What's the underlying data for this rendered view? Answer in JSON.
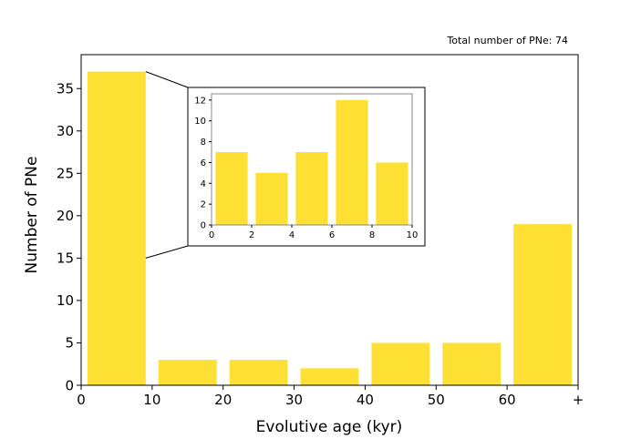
{
  "chart_data": [
    {
      "type": "bar",
      "role": "main",
      "annotation": "Total number of PNe: 74",
      "xlabel": "Evolutive age (kyr)",
      "ylabel": "Number of PNe",
      "bins": [
        {
          "x0": 0,
          "x1": 10,
          "value": 37
        },
        {
          "x0": 10,
          "x1": 20,
          "value": 3
        },
        {
          "x0": 20,
          "x1": 30,
          "value": 3
        },
        {
          "x0": 30,
          "x1": 40,
          "value": 2
        },
        {
          "x0": 40,
          "x1": 50,
          "value": 5
        },
        {
          "x0": 50,
          "x1": 60,
          "value": 5
        },
        {
          "x0": 60,
          "x1": 70,
          "value": 19
        }
      ],
      "xlim": [
        0,
        70
      ],
      "ylim": [
        0,
        39
      ],
      "xticks": [
        0,
        10,
        20,
        30,
        40,
        50,
        60,
        70
      ],
      "xtick_labels": [
        "0",
        "10",
        "20",
        "30",
        "40",
        "50",
        "60",
        "+"
      ],
      "yticks": [
        0,
        5,
        10,
        15,
        20,
        25,
        30,
        35
      ],
      "color": "#fde033",
      "grid": false
    },
    {
      "type": "bar",
      "role": "inset",
      "zoom_of": "0-10 kyr bin",
      "xlabel": "",
      "ylabel": "",
      "bins": [
        {
          "x0": 0,
          "x1": 2,
          "value": 7
        },
        {
          "x0": 2,
          "x1": 4,
          "value": 5
        },
        {
          "x0": 4,
          "x1": 6,
          "value": 7
        },
        {
          "x0": 6,
          "x1": 8,
          "value": 12
        },
        {
          "x0": 8,
          "x1": 10,
          "value": 6
        }
      ],
      "xlim": [
        0,
        10
      ],
      "ylim": [
        0,
        12.6
      ],
      "xticks": [
        0,
        2,
        4,
        6,
        8,
        10
      ],
      "yticks": [
        0,
        2,
        4,
        6,
        8,
        10,
        12
      ],
      "color": "#fde033",
      "grid": false
    }
  ]
}
